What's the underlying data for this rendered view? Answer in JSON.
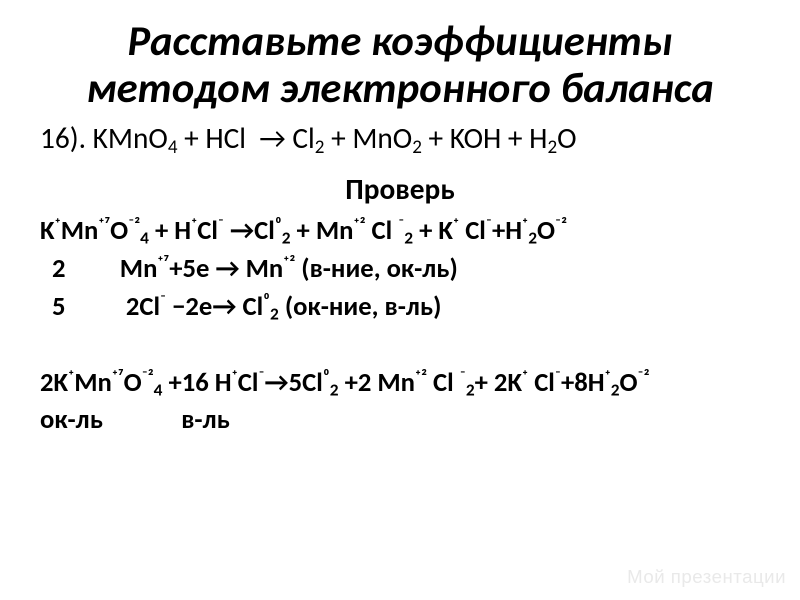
{
  "colors": {
    "background": "#ffffff",
    "text": "#000000",
    "watermark": "#e9e9e9"
  },
  "typography": {
    "family": "Calibri, Arial, sans-serif",
    "title_fontsize_pt": 32,
    "title_style": "italic",
    "title_weight": 700,
    "body_fontsize_pt": 22,
    "check_fontsize_pt": 22,
    "check_weight": 700,
    "work_fontsize_pt": 20,
    "work_weight": 700,
    "watermark_fontsize_pt": 14
  },
  "title": {
    "line1": "Расставьте коэффициенты",
    "line2": "методом электронного баланса"
  },
  "equation16": {
    "label": "16).",
    "html": "KMnO<sub>4</sub> + HCl &nbsp;→ Cl<sub>2</sub> + MnO<sub>2</sub> + KOH + H<sub>2</sub>O"
  },
  "check_label": "Проверь",
  "work": {
    "line1_html": "K<sup>⁺</sup>Mn<sup>⁺⁷</sup>O<sup>⁻²</sup><sub>4</sub> + H<sup>⁺</sup>Cl<sup>⁻</sup> →Cl<sup>⁰</sup><sub>2</sub> + Mn<sup>⁺²</sup> Cl <sup>⁻</sup><sub>2</sub> + K<sup>⁺</sup> Cl<sup>⁻</sup>+H<sup>⁺</sup><sub>2</sub>O<sup>⁻²</sup>",
    "line2_html": "  2         Mn<sup>⁺⁷</sup>+5e → Mn<sup>⁺²</sup> (в-ние, ок-ль)",
    "line3_html": "  5          2Cl<sup>⁻</sup> −2e→ Cl<sup>⁰</sup><sub>2</sub> (ок-ние, в-ль)",
    "line4_html": "2K<sup>⁺</sup>Mn<sup>⁺⁷</sup>O<sup>⁻²</sup><sub>4</sub> +16 H<sup>⁺</sup>Cl<sup>⁻</sup>→5Cl<sup>⁰</sup><sub>2</sub> +2 Mn<sup>⁺²</sup> Cl <sup>⁻</sup><sub>2</sub>+ 2K<sup>⁺</sup> Cl<sup>⁻</sup>+8H<sup>⁺</sup><sub>2</sub>O<sup>⁻²</sup>",
    "line5_html": "ок-ль             в-ль"
  },
  "watermark": "Мой презентации"
}
